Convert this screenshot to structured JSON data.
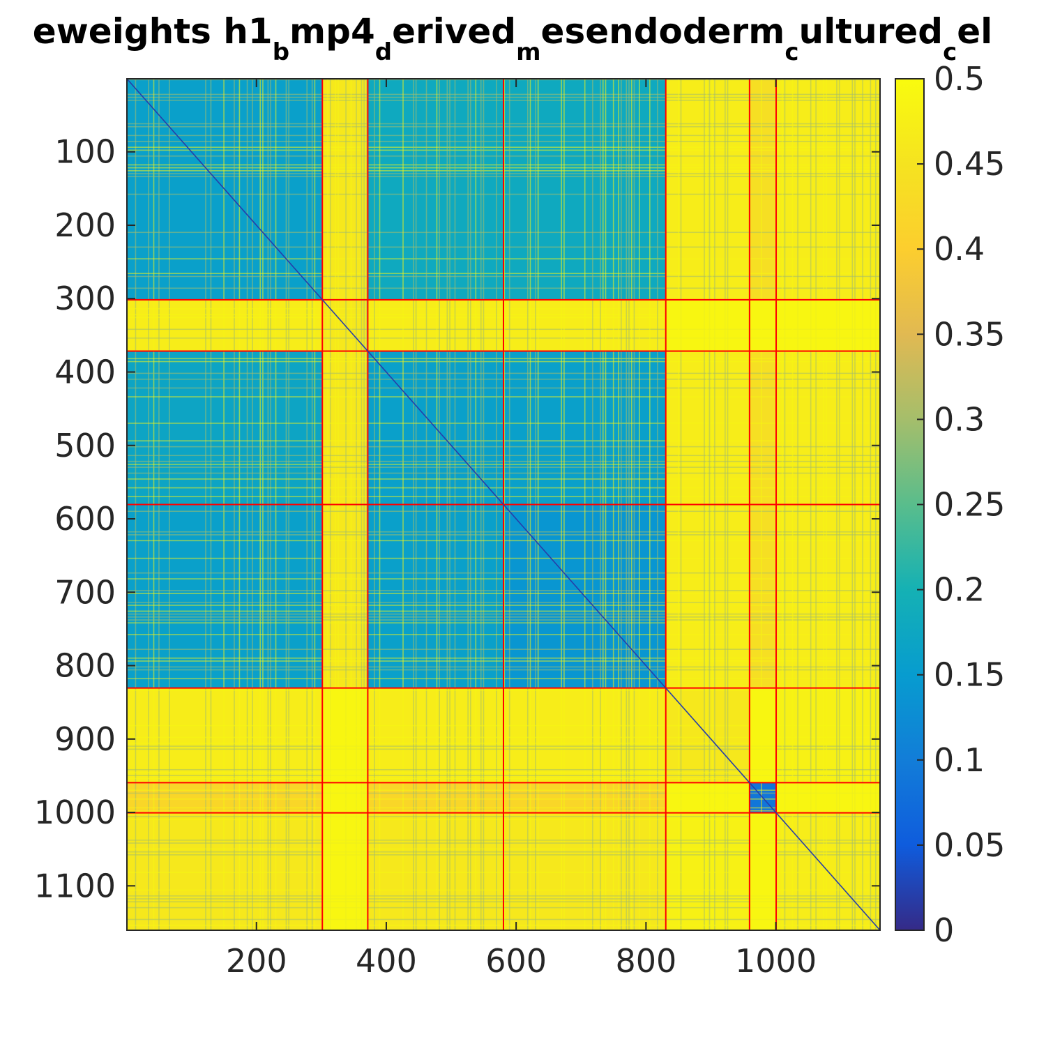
{
  "chart_data": {
    "type": "heatmap",
    "title": {
      "segments": [
        {
          "text": "eweights h1",
          "sub": false
        },
        {
          "text": "b",
          "sub": true
        },
        {
          "text": "mp4",
          "sub": false
        },
        {
          "text": "d",
          "sub": true
        },
        {
          "text": "erived",
          "sub": false
        },
        {
          "text": "m",
          "sub": true
        },
        {
          "text": "esendoderm",
          "sub": false
        },
        {
          "text": "c",
          "sub": true
        },
        {
          "text": "ultured",
          "sub": false
        },
        {
          "text": "c",
          "sub": true
        },
        {
          "text": "el",
          "sub": false
        }
      ]
    },
    "xlabel": "",
    "ylabel": "",
    "n": 1160,
    "xlim": [
      0.5,
      1160.5
    ],
    "ylim": [
      0.5,
      1160.5
    ],
    "y_reversed": true,
    "x_ticks": [
      200,
      400,
      600,
      800,
      1000
    ],
    "x_tick_labels": [
      "200",
      "400",
      "600",
      "800",
      "1000"
    ],
    "y_ticks": [
      100,
      200,
      300,
      400,
      500,
      600,
      700,
      800,
      900,
      1000,
      1100
    ],
    "y_tick_labels": [
      "100",
      "200",
      "300",
      "400",
      "500",
      "600",
      "700",
      "800",
      "900",
      "1000",
      "1100"
    ],
    "colorbar": {
      "range": [
        0,
        0.5
      ],
      "ticks": [
        0,
        0.05,
        0.1,
        0.15,
        0.2,
        0.25,
        0.3,
        0.35,
        0.4,
        0.45,
        0.5
      ],
      "tick_labels": [
        "0",
        "0.05",
        "0.1",
        "0.15",
        "0.2",
        "0.25",
        "0.3",
        "0.35",
        "0.4",
        "0.45",
        "0.5"
      ],
      "colormap": "parula"
    },
    "cluster_boundaries": [
      301,
      371,
      580,
      830,
      959,
      1000
    ],
    "boundary_color": "#ff0000",
    "block_mean_values": [
      [
        0.16,
        0.46,
        0.18,
        0.18,
        0.47,
        0.44,
        0.47
      ],
      [
        0.47,
        0.46,
        0.47,
        0.47,
        0.49,
        0.49,
        0.49
      ],
      [
        0.17,
        0.46,
        0.16,
        0.16,
        0.47,
        0.44,
        0.47
      ],
      [
        0.16,
        0.46,
        0.16,
        0.14,
        0.47,
        0.44,
        0.47
      ],
      [
        0.47,
        0.49,
        0.47,
        0.47,
        0.46,
        0.49,
        0.48
      ],
      [
        0.42,
        0.49,
        0.42,
        0.42,
        0.49,
        0.09,
        0.49
      ],
      [
        0.46,
        0.49,
        0.46,
        0.46,
        0.48,
        0.49,
        0.47
      ]
    ],
    "grid": false
  }
}
